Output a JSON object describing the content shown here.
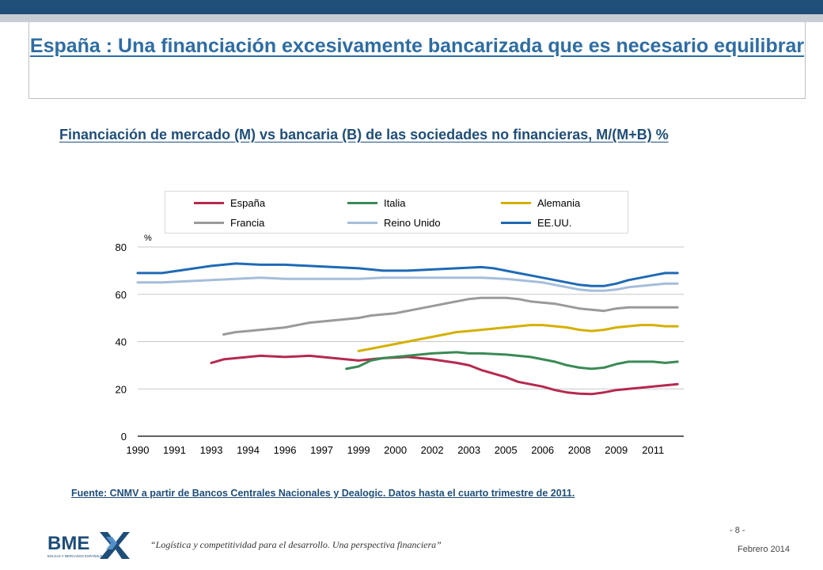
{
  "header": {
    "title": "España : Una financiación excesivamente bancarizada que es necesario equilibrar"
  },
  "subtitle": "Financiación de mercado (M) vs bancaria (B) de las sociedades no financieras, M/(M+B) %",
  "source": "Fuente: CNMV a partir de Bancos Centrales Nacionales y Dealogic. Datos hasta el cuarto trimestre de 2011.",
  "footer": {
    "logo_text": "BME",
    "logo_subtext": "BOLSAS Y MERCADOS ESPAÑOLES",
    "tagline": "“Logística y competitividad para el desarrollo. Una perspectiva financiera”",
    "page": "- 8 -",
    "date": "Febrero 2014"
  },
  "colors": {
    "topbar": "#1f4e79",
    "accent": "#2e6da4"
  },
  "chart_data": {
    "type": "line",
    "ylabel": "%",
    "ylim": [
      0,
      80
    ],
    "yticks": [
      0,
      20,
      40,
      60,
      80
    ],
    "xlim": [
      1990,
      2012.25
    ],
    "xticks": [
      "1990",
      "1991",
      "1993",
      "1994",
      "1996",
      "1997",
      "1999",
      "2000",
      "2002",
      "2003",
      "2005",
      "2006",
      "2008",
      "2009",
      "2011"
    ],
    "xtick_positions": [
      1990,
      1991.5,
      1993,
      1994.5,
      1996,
      1997.5,
      1999,
      2000.5,
      2002,
      2003.5,
      2005,
      2006.5,
      2008,
      2009.5,
      2011
    ],
    "grid": "horizontal",
    "legend_position": "top",
    "series": [
      {
        "name": "España",
        "color": "#b5294e",
        "x": [
          1993,
          1993.5,
          1994,
          1995,
          1996,
          1997,
          1998,
          1999,
          2000,
          2001,
          2002,
          2003,
          2003.5,
          2004,
          2005,
          2005.5,
          2006,
          2006.5,
          2007,
          2007.5,
          2008,
          2008.5,
          2009,
          2009.5,
          2010,
          2010.5,
          2011,
          2011.5,
          2012
        ],
        "y": [
          31,
          32.5,
          33,
          34,
          33.5,
          34,
          33,
          32,
          33,
          33.5,
          32.5,
          31,
          30,
          28,
          25,
          23,
          22,
          21,
          19.5,
          18.5,
          18,
          17.8,
          18.5,
          19.5,
          20,
          20.5,
          21,
          21.5,
          22
        ]
      },
      {
        "name": "Italia",
        "color": "#3a8a55",
        "x": [
          1998.5,
          1999,
          1999.5,
          2000,
          2000.5,
          2001,
          2002,
          2003,
          2003.5,
          2004,
          2005,
          2006,
          2007,
          2007.5,
          2008,
          2008.5,
          2009,
          2009.5,
          2010,
          2011,
          2011.5,
          2012
        ],
        "y": [
          28.5,
          29.5,
          32,
          33,
          33.5,
          34,
          35,
          35.5,
          35,
          35,
          34.5,
          33.5,
          31.5,
          30,
          29,
          28.5,
          29,
          30.5,
          31.5,
          31.5,
          31,
          31.5
        ]
      },
      {
        "name": "Alemania",
        "color": "#d4b000",
        "x": [
          1999,
          1999.5,
          2000,
          2000.5,
          2001,
          2001.5,
          2002,
          2002.5,
          2003,
          2003.5,
          2004,
          2004.5,
          2005,
          2005.5,
          2006,
          2006.5,
          2007,
          2007.5,
          2008,
          2008.5,
          2009,
          2009.5,
          2010,
          2010.5,
          2011,
          2011.5,
          2012
        ],
        "y": [
          36,
          37,
          38,
          39,
          40,
          41,
          42,
          43,
          44,
          44.5,
          45,
          45.5,
          46,
          46.5,
          47,
          47,
          46.5,
          46,
          45,
          44.5,
          45,
          46,
          46.5,
          47,
          47,
          46.5,
          46.5
        ]
      },
      {
        "name": "Francia",
        "color": "#9a9a9a",
        "x": [
          1993.5,
          1994,
          1994.5,
          1995,
          1995.5,
          1996,
          1996.5,
          1997,
          1997.5,
          1998,
          1998.5,
          1999,
          1999.5,
          2000,
          2000.5,
          2001,
          2001.5,
          2002,
          2002.5,
          2003,
          2003.5,
          2004,
          2004.5,
          2005,
          2005.5,
          2006,
          2006.5,
          2007,
          2007.5,
          2008,
          2008.5,
          2009,
          2009.5,
          2010,
          2010.5,
          2011,
          2011.5,
          2012
        ],
        "y": [
          43,
          44,
          44.5,
          45,
          45.5,
          46,
          47,
          48,
          48.5,
          49,
          49.5,
          50,
          51,
          51.5,
          52,
          53,
          54,
          55,
          56,
          57,
          58,
          58.5,
          58.5,
          58.5,
          58,
          57,
          56.5,
          56,
          55,
          54,
          53.5,
          53,
          54,
          54.5,
          54.5,
          54.5,
          54.5,
          54.5
        ]
      },
      {
        "name": "Reino Unido",
        "color": "#a6bddb",
        "x": [
          1990,
          1991,
          1992,
          1993,
          1994,
          1995,
          1996,
          1997,
          1998,
          1999,
          2000,
          2001,
          2002,
          2003,
          2004,
          2005,
          2005.5,
          2006,
          2006.5,
          2007,
          2007.5,
          2008,
          2008.5,
          2009,
          2009.5,
          2010,
          2010.5,
          2011,
          2011.5,
          2012
        ],
        "y": [
          65,
          65,
          65.5,
          66,
          66.5,
          67,
          66.5,
          66.5,
          66.5,
          66.5,
          67,
          67,
          67,
          67,
          67,
          66.5,
          66,
          65.5,
          65,
          64,
          63,
          62,
          61.5,
          61.5,
          62,
          63,
          63.5,
          64,
          64.5,
          64.5
        ]
      },
      {
        "name": "EE.UU.",
        "color": "#1f6ab5",
        "x": [
          1990,
          1991,
          1992,
          1993,
          1994,
          1995,
          1996,
          1997,
          1998,
          1999,
          2000,
          2001,
          2002,
          2003,
          2004,
          2004.5,
          2005,
          2005.5,
          2006,
          2006.5,
          2007,
          2007.5,
          2008,
          2008.5,
          2009,
          2009.5,
          2010,
          2010.5,
          2011,
          2011.5,
          2012
        ],
        "y": [
          69,
          69,
          70.5,
          72,
          73,
          72.5,
          72.5,
          72,
          71.5,
          71,
          70,
          70,
          70.5,
          71,
          71.5,
          71,
          70,
          69,
          68,
          67,
          66,
          65,
          64,
          63.5,
          63.5,
          64.5,
          66,
          67,
          68,
          69,
          69
        ]
      }
    ]
  }
}
